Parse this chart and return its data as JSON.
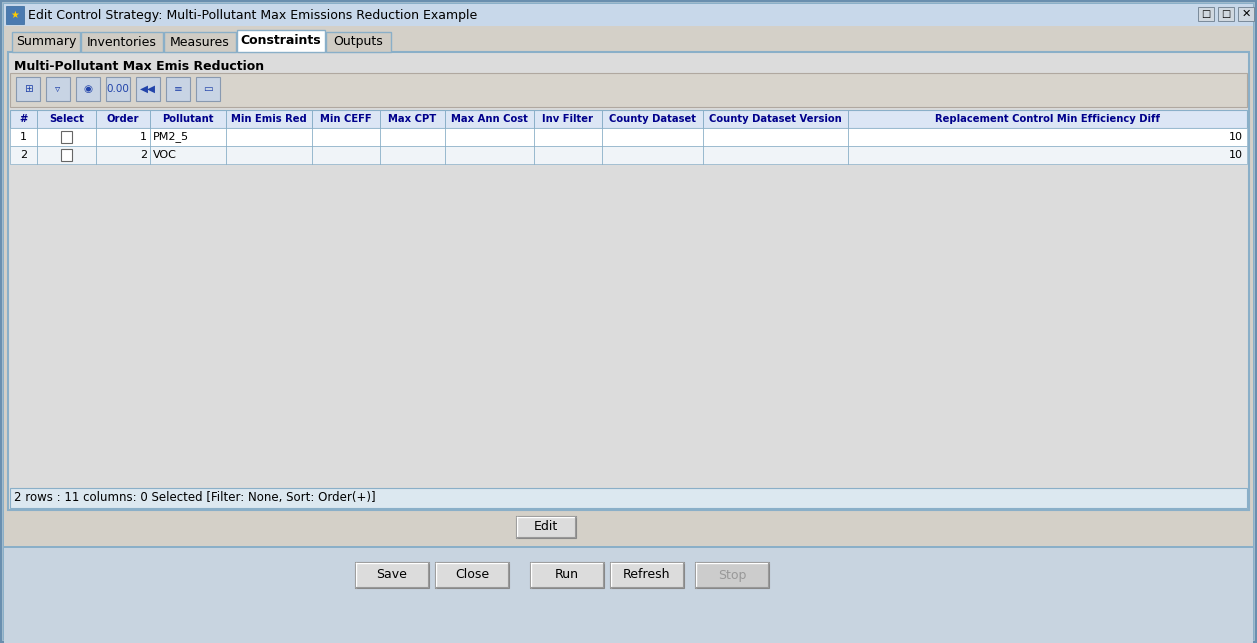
{
  "window_title": "Edit Control Strategy: Multi-Pollutant Max Emissions Reduction Example",
  "tabs": [
    "Summary",
    "Inventories",
    "Measures",
    "Constraints",
    "Outputs"
  ],
  "active_tab": "Constraints",
  "section_label": "Multi-Pollutant Max Emis Reduction",
  "table_columns": [
    "#",
    "Select",
    "Order",
    "Pollutant",
    "Min Emis Red",
    "Min CEFF",
    "Max CPT",
    "Max Ann Cost",
    "Inv Filter",
    "County Dataset",
    "County Dataset Version",
    "Replacement Control Min Efficiency Diff"
  ],
  "col_props": [
    0.022,
    0.048,
    0.044,
    0.062,
    0.07,
    0.055,
    0.053,
    0.072,
    0.055,
    0.082,
    0.118,
    0.22
  ],
  "table_rows": [
    [
      "1",
      "",
      "1",
      "PM2_5",
      "",
      "",
      "",
      "",
      "",
      "",
      "",
      "10"
    ],
    [
      "2",
      "",
      "2",
      "VOC",
      "",
      "",
      "",
      "",
      "",
      "",
      "",
      "10"
    ]
  ],
  "status_text": "2 rows : 11 columns: 0 Selected [Filter: None, Sort: Order(+)]",
  "edit_button": "Edit",
  "bottom_buttons": [
    "Save",
    "Close",
    "Run",
    "Refresh",
    "Stop"
  ],
  "bg_color": "#d4d0c8",
  "inner_panel_bg": "#dcdcdc",
  "table_header_bg": "#dce6f5",
  "row1_bg": "#ffffff",
  "row2_bg": "#f0f4f8",
  "active_tab_bg": "#ffffff",
  "inactive_tab_bg": "#d0ccc4",
  "text_color": "#000000",
  "header_text_color": "#00008b",
  "window_frame_outer": "#6a8faf",
  "window_frame_inner": "#8aafc8",
  "title_bar_bg": "#c8d8ea",
  "outer_bg": "#a8bfd0",
  "status_bg": "#dce8f0",
  "bottom_panel_bg": "#c8d4e0",
  "btn_face": "#dcdcdc",
  "btn_stop_face": "#cccccc"
}
